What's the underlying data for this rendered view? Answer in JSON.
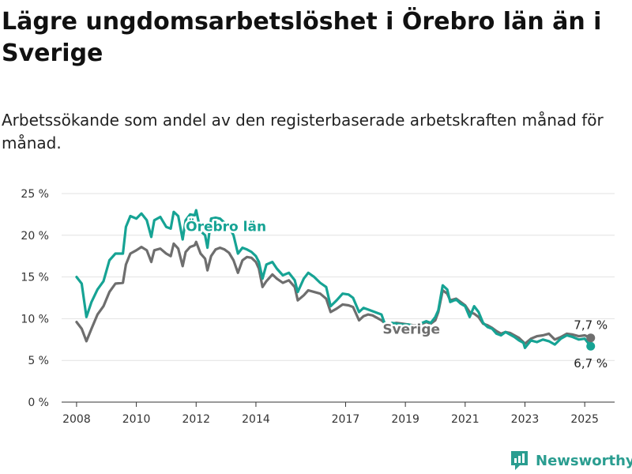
{
  "title": "Lägre ungdomsarbetslöshet i Örebro län än i Sverige",
  "subtitle": "Arbetssökande som andel av den registerbaserade arbetskraften månad för månad.",
  "brand": {
    "name": "Newsworthy",
    "icon": "newsworthy-logo-icon"
  },
  "colors": {
    "orebro": "#16a394",
    "sverige": "#6e6e6e",
    "grid": "#e2e2e2",
    "axis": "#333333",
    "brand": "#2a9d90"
  },
  "chart_data": {
    "type": "line",
    "title": "Lägre ungdomsarbetslöshet i Örebro län än i Sverige",
    "xlabel": "",
    "ylabel": "",
    "ylim": [
      0,
      25
    ],
    "xlim": [
      2007.5,
      2026.0
    ],
    "grid": true,
    "y_ticks": [
      0,
      5,
      10,
      15,
      20,
      25
    ],
    "y_tick_labels": [
      "0 %",
      "5 %",
      "10 %",
      "15 %",
      "20 %",
      "25 %"
    ],
    "x_ticks": [
      2008,
      2010,
      2012,
      2014,
      2017,
      2019,
      2021,
      2023,
      2025
    ],
    "x_tick_labels": [
      "2008",
      "2010",
      "2012",
      "2014",
      "2017",
      "2019",
      "2021",
      "2023",
      "2025"
    ],
    "series": [
      {
        "name": "Örebro län",
        "color": "#16a394",
        "end_label": "6,7 %",
        "points": [
          [
            2008.0,
            15.0
          ],
          [
            2008.17,
            14.2
          ],
          [
            2008.33,
            10.2
          ],
          [
            2008.5,
            12.0
          ],
          [
            2008.7,
            13.5
          ],
          [
            2008.9,
            14.5
          ],
          [
            2009.1,
            17.0
          ],
          [
            2009.3,
            17.8
          ],
          [
            2009.55,
            17.8
          ],
          [
            2009.65,
            21.0
          ],
          [
            2009.8,
            22.3
          ],
          [
            2010.0,
            22.0
          ],
          [
            2010.17,
            22.6
          ],
          [
            2010.35,
            21.8
          ],
          [
            2010.5,
            19.8
          ],
          [
            2010.6,
            21.8
          ],
          [
            2010.8,
            22.2
          ],
          [
            2011.0,
            21.0
          ],
          [
            2011.15,
            20.8
          ],
          [
            2011.25,
            22.8
          ],
          [
            2011.4,
            22.3
          ],
          [
            2011.55,
            19.5
          ],
          [
            2011.65,
            21.8
          ],
          [
            2011.8,
            22.5
          ],
          [
            2011.95,
            22.4
          ],
          [
            2012.0,
            23.0
          ],
          [
            2012.15,
            20.5
          ],
          [
            2012.3,
            20.0
          ],
          [
            2012.38,
            18.5
          ],
          [
            2012.5,
            22.0
          ],
          [
            2012.65,
            22.1
          ],
          [
            2012.8,
            22.0
          ],
          [
            2012.95,
            21.5
          ],
          [
            2013.1,
            21.0
          ],
          [
            2013.25,
            20.0
          ],
          [
            2013.4,
            17.8
          ],
          [
            2013.55,
            18.5
          ],
          [
            2013.7,
            18.3
          ],
          [
            2013.85,
            18.0
          ],
          [
            2014.0,
            17.5
          ],
          [
            2014.1,
            16.8
          ],
          [
            2014.22,
            14.8
          ],
          [
            2014.35,
            16.5
          ],
          [
            2014.55,
            16.8
          ],
          [
            2014.7,
            16.0
          ],
          [
            2014.9,
            15.2
          ],
          [
            2015.1,
            15.5
          ],
          [
            2015.3,
            14.6
          ],
          [
            2015.4,
            13.2
          ],
          [
            2015.6,
            14.8
          ],
          [
            2015.75,
            15.5
          ],
          [
            2015.95,
            15.0
          ],
          [
            2016.15,
            14.3
          ],
          [
            2016.35,
            13.8
          ],
          [
            2016.5,
            11.5
          ],
          [
            2016.7,
            12.2
          ],
          [
            2016.9,
            13.0
          ],
          [
            2017.1,
            12.9
          ],
          [
            2017.25,
            12.5
          ],
          [
            2017.45,
            10.8
          ],
          [
            2017.6,
            11.3
          ],
          [
            2017.75,
            11.1
          ],
          [
            2017.9,
            10.9
          ],
          [
            2018.05,
            10.7
          ],
          [
            2018.2,
            10.5
          ],
          [
            2018.4,
            8.5
          ],
          [
            2018.55,
            9.5
          ],
          [
            2018.7,
            9.4
          ],
          [
            2018.9,
            9.3
          ],
          [
            2019.1,
            9.3
          ],
          [
            2019.3,
            9.1
          ],
          [
            2019.5,
            9.4
          ],
          [
            2019.7,
            9.7
          ],
          [
            2019.85,
            9.5
          ],
          [
            2020.0,
            10.2
          ],
          [
            2020.1,
            11.0
          ],
          [
            2020.25,
            14.0
          ],
          [
            2020.4,
            13.5
          ],
          [
            2020.5,
            12.0
          ],
          [
            2020.7,
            12.3
          ],
          [
            2020.85,
            11.8
          ],
          [
            2021.0,
            11.5
          ],
          [
            2021.15,
            10.2
          ],
          [
            2021.3,
            11.5
          ],
          [
            2021.45,
            10.8
          ],
          [
            2021.6,
            9.5
          ],
          [
            2021.75,
            9.0
          ],
          [
            2021.9,
            8.8
          ],
          [
            2022.05,
            8.2
          ],
          [
            2022.2,
            8.0
          ],
          [
            2022.35,
            8.4
          ],
          [
            2022.5,
            8.1
          ],
          [
            2022.65,
            7.8
          ],
          [
            2022.8,
            7.4
          ],
          [
            2022.95,
            7.1
          ],
          [
            2023.0,
            6.5
          ],
          [
            2023.2,
            7.4
          ],
          [
            2023.4,
            7.2
          ],
          [
            2023.6,
            7.5
          ],
          [
            2023.8,
            7.3
          ],
          [
            2024.0,
            6.9
          ],
          [
            2024.2,
            7.6
          ],
          [
            2024.4,
            8.0
          ],
          [
            2024.6,
            7.8
          ],
          [
            2024.8,
            7.5
          ],
          [
            2025.0,
            7.6
          ],
          [
            2025.2,
            6.7
          ]
        ]
      },
      {
        "name": "Sverige",
        "color": "#6e6e6e",
        "end_label": "7,7 %",
        "points": [
          [
            2008.0,
            9.6
          ],
          [
            2008.17,
            8.8
          ],
          [
            2008.33,
            7.3
          ],
          [
            2008.5,
            8.8
          ],
          [
            2008.7,
            10.5
          ],
          [
            2008.9,
            11.5
          ],
          [
            2009.1,
            13.2
          ],
          [
            2009.3,
            14.2
          ],
          [
            2009.55,
            14.3
          ],
          [
            2009.65,
            16.5
          ],
          [
            2009.8,
            17.8
          ],
          [
            2010.0,
            18.2
          ],
          [
            2010.17,
            18.6
          ],
          [
            2010.35,
            18.2
          ],
          [
            2010.5,
            16.8
          ],
          [
            2010.6,
            18.2
          ],
          [
            2010.8,
            18.4
          ],
          [
            2011.0,
            17.8
          ],
          [
            2011.15,
            17.5
          ],
          [
            2011.25,
            19.0
          ],
          [
            2011.4,
            18.4
          ],
          [
            2011.55,
            16.3
          ],
          [
            2011.65,
            18.0
          ],
          [
            2011.8,
            18.6
          ],
          [
            2011.95,
            18.8
          ],
          [
            2012.0,
            19.2
          ],
          [
            2012.15,
            17.8
          ],
          [
            2012.3,
            17.2
          ],
          [
            2012.38,
            15.8
          ],
          [
            2012.5,
            17.5
          ],
          [
            2012.65,
            18.3
          ],
          [
            2012.8,
            18.5
          ],
          [
            2012.95,
            18.3
          ],
          [
            2013.1,
            17.9
          ],
          [
            2013.25,
            17.0
          ],
          [
            2013.4,
            15.5
          ],
          [
            2013.55,
            17.0
          ],
          [
            2013.7,
            17.4
          ],
          [
            2013.85,
            17.3
          ],
          [
            2014.0,
            16.8
          ],
          [
            2014.1,
            16.0
          ],
          [
            2014.22,
            13.8
          ],
          [
            2014.35,
            14.5
          ],
          [
            2014.55,
            15.3
          ],
          [
            2014.7,
            14.8
          ],
          [
            2014.9,
            14.3
          ],
          [
            2015.1,
            14.6
          ],
          [
            2015.3,
            13.8
          ],
          [
            2015.4,
            12.2
          ],
          [
            2015.6,
            12.8
          ],
          [
            2015.75,
            13.4
          ],
          [
            2015.95,
            13.2
          ],
          [
            2016.15,
            13.0
          ],
          [
            2016.35,
            12.4
          ],
          [
            2016.5,
            10.8
          ],
          [
            2016.7,
            11.2
          ],
          [
            2016.9,
            11.7
          ],
          [
            2017.1,
            11.6
          ],
          [
            2017.25,
            11.4
          ],
          [
            2017.45,
            9.8
          ],
          [
            2017.6,
            10.3
          ],
          [
            2017.75,
            10.5
          ],
          [
            2017.9,
            10.4
          ],
          [
            2018.05,
            10.1
          ],
          [
            2018.2,
            9.8
          ],
          [
            2018.4,
            9.2
          ],
          [
            2018.55,
            9.4
          ],
          [
            2018.7,
            9.5
          ],
          [
            2018.9,
            9.4
          ],
          [
            2019.1,
            9.3
          ],
          [
            2019.3,
            9.2
          ],
          [
            2019.5,
            9.3
          ],
          [
            2019.7,
            9.6
          ],
          [
            2019.85,
            9.4
          ],
          [
            2020.0,
            9.8
          ],
          [
            2020.1,
            10.8
          ],
          [
            2020.25,
            13.4
          ],
          [
            2020.4,
            13.0
          ],
          [
            2020.5,
            12.2
          ],
          [
            2020.7,
            12.4
          ],
          [
            2020.85,
            12.0
          ],
          [
            2021.0,
            11.6
          ],
          [
            2021.15,
            10.8
          ],
          [
            2021.3,
            10.6
          ],
          [
            2021.45,
            10.2
          ],
          [
            2021.6,
            9.4
          ],
          [
            2021.75,
            9.2
          ],
          [
            2021.9,
            8.9
          ],
          [
            2022.05,
            8.5
          ],
          [
            2022.2,
            8.2
          ],
          [
            2022.35,
            8.4
          ],
          [
            2022.5,
            8.3
          ],
          [
            2022.65,
            8.0
          ],
          [
            2022.8,
            7.7
          ],
          [
            2022.95,
            7.2
          ],
          [
            2023.0,
            7.0
          ],
          [
            2023.2,
            7.6
          ],
          [
            2023.4,
            7.9
          ],
          [
            2023.6,
            8.0
          ],
          [
            2023.8,
            8.2
          ],
          [
            2024.0,
            7.5
          ],
          [
            2024.2,
            7.8
          ],
          [
            2024.4,
            8.2
          ],
          [
            2024.6,
            8.1
          ],
          [
            2024.8,
            7.9
          ],
          [
            2025.0,
            8.0
          ],
          [
            2025.2,
            7.7
          ]
        ]
      }
    ],
    "annotations": [
      {
        "text": "Örebro län",
        "series": 0,
        "x": 2013.0,
        "y": 20.5
      },
      {
        "text": "Sverige",
        "series": 1,
        "x": 2019.2,
        "y": 8.2
      }
    ]
  }
}
